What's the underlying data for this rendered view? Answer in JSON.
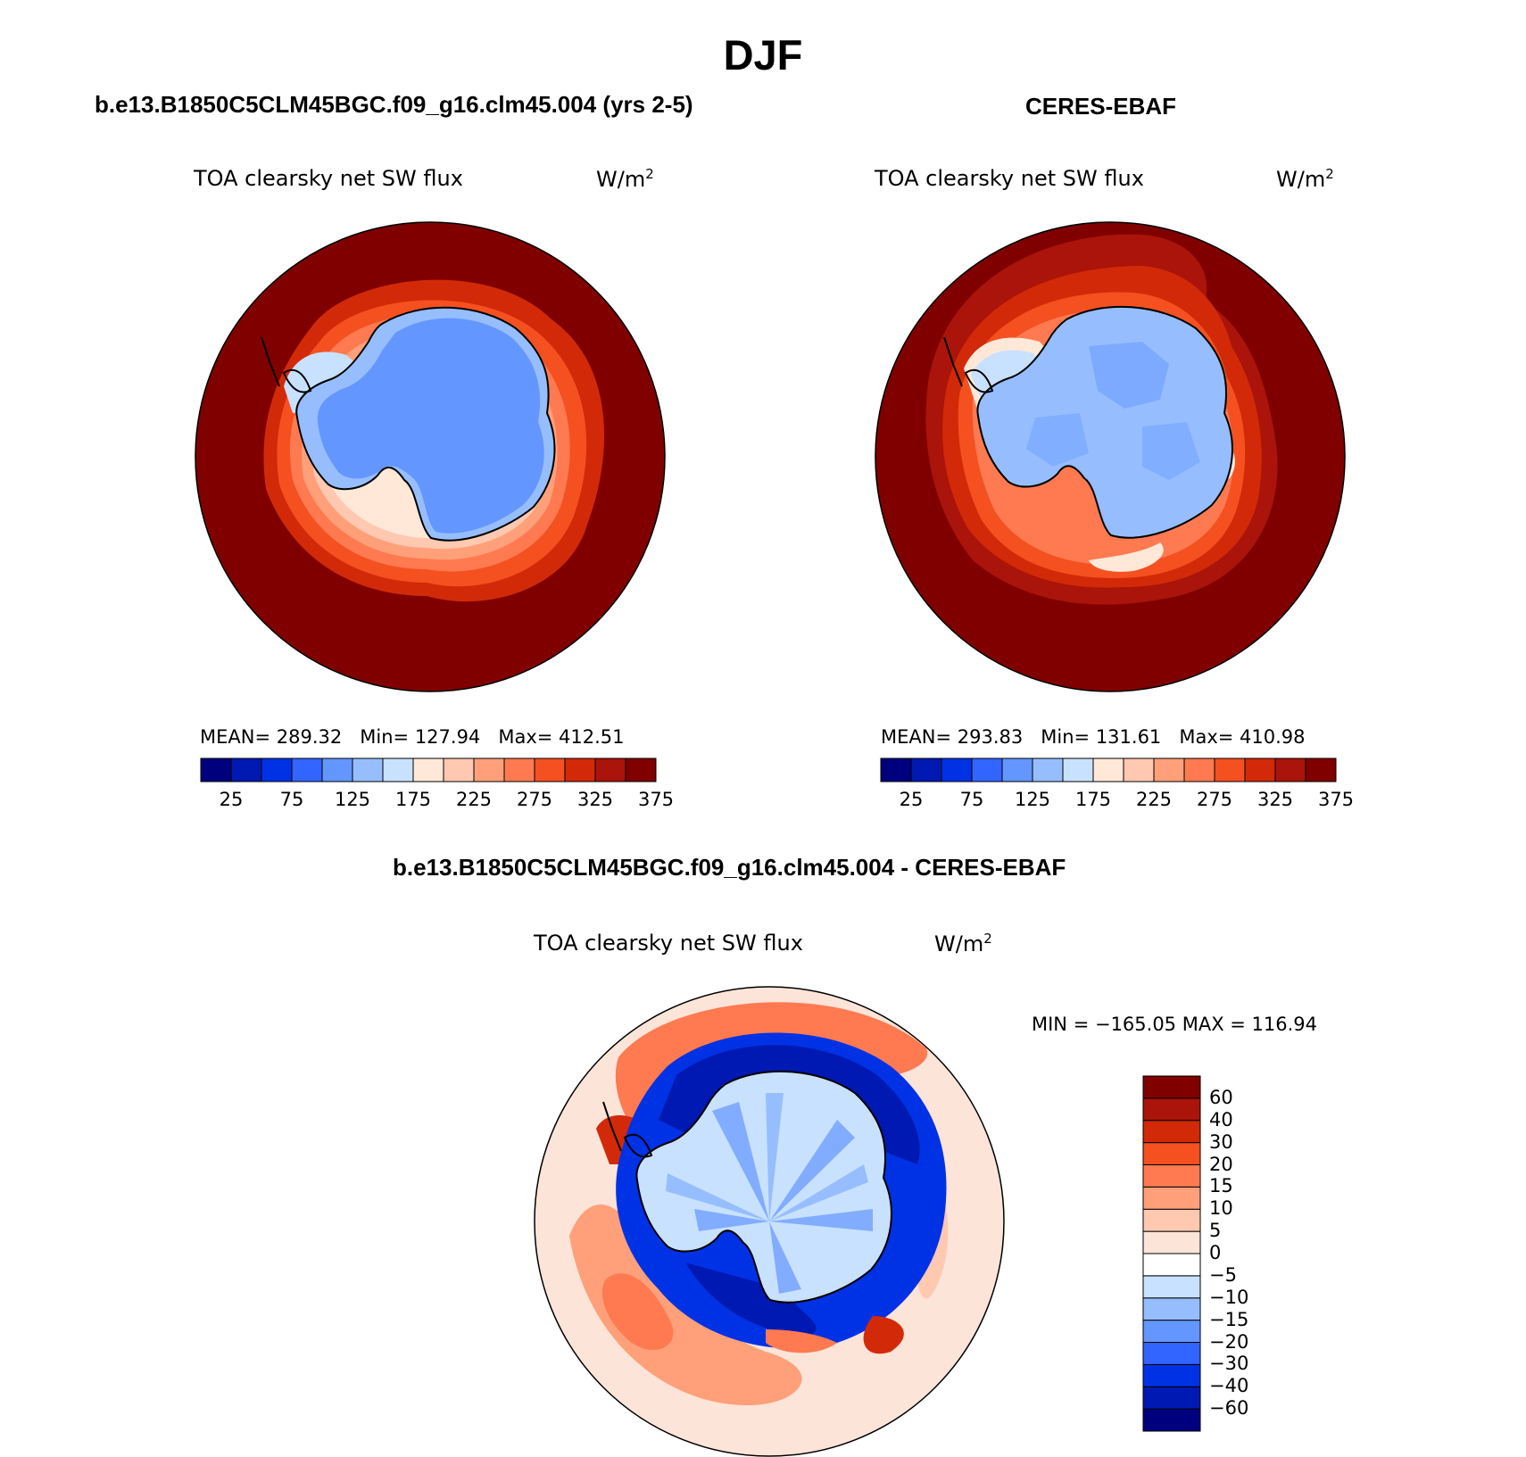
{
  "title": "DJF",
  "panels": [
    {
      "id": "model",
      "case_title": "b.e13.B1850C5CLM45BGC.f09_g16.clm45.004 (yrs 2-5)",
      "variable": "TOA clearsky net SW flux",
      "units": "W/m",
      "units_exp": "2",
      "stats": {
        "mean_label": "MEAN=",
        "mean": "289.32",
        "min_label": "Min=",
        "min": "127.94",
        "max_label": "Max=",
        "max": "412.51"
      }
    },
    {
      "id": "obs",
      "case_title": "CERES-EBAF",
      "variable": "TOA clearsky net SW flux",
      "units": "W/m",
      "units_exp": "2",
      "stats": {
        "mean_label": "MEAN=",
        "mean": "293.83",
        "min_label": "Min=",
        "min": "131.61",
        "max_label": "Max=",
        "max": "410.98"
      }
    }
  ],
  "colorbar_abs": {
    "colors": [
      "#00007f",
      "#0019b2",
      "#0032e5",
      "#3264ff",
      "#6496ff",
      "#96beff",
      "#c8e1ff",
      "#ffe8d8",
      "#ffc8b0",
      "#ffa07a",
      "#ff7a50",
      "#f55020",
      "#d22a08",
      "#aa140a",
      "#800000"
    ],
    "tick_labels": [
      "25",
      "75",
      "125",
      "175",
      "225",
      "275",
      "325",
      "375"
    ]
  },
  "diff_panel": {
    "case_title": "b.e13.B1850C5CLM45BGC.f09_g16.clm45.004 - CERES-EBAF",
    "variable": "TOA clearsky net SW flux",
    "units": "W/m",
    "units_exp": "2",
    "minmax": "MIN = −165.05 MAX = 116.94",
    "colorbar": {
      "colors": [
        "#00007f",
        "#0019b2",
        "#0032e5",
        "#3264ff",
        "#6496ff",
        "#96beff",
        "#c8e1ff",
        "#ffffff",
        "#fde4d8",
        "#ffc8b0",
        "#ffa07a",
        "#ff7a50",
        "#f55020",
        "#d22a08",
        "#aa140a",
        "#800000"
      ],
      "tick_labels": [
        "60",
        "40",
        "30",
        "20",
        "15",
        "10",
        "5",
        "0",
        "−5",
        "−10",
        "−15",
        "−20",
        "−30",
        "−40",
        "−60"
      ]
    }
  }
}
